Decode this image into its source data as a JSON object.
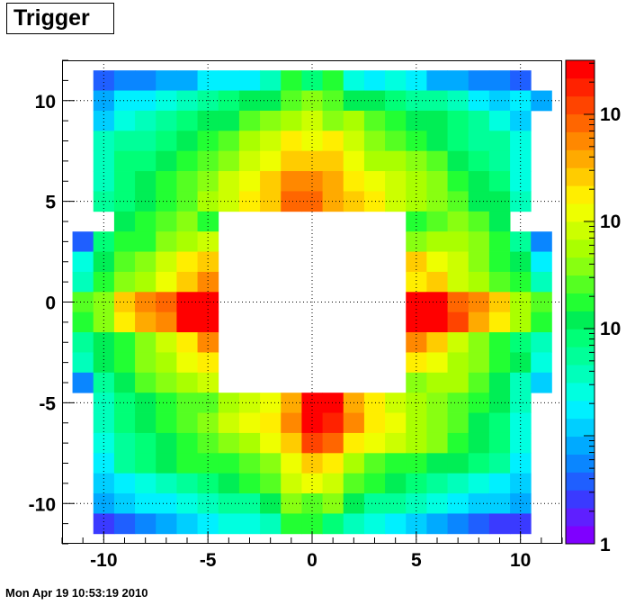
{
  "title": "Trigger",
  "timestamp": "Mon Apr 19 10:53:19 2010",
  "chart_data": {
    "type": "heatmap",
    "title": "Trigger",
    "x_edges": [
      -11.5,
      -10.5,
      -9.5,
      -8.5,
      -7.5,
      -6.5,
      -5.5,
      -4.5,
      -3.5,
      -2.5,
      -1.5,
      -0.5,
      0.5,
      1.5,
      2.5,
      3.5,
      4.5,
      5.5,
      6.5,
      7.5,
      8.5,
      9.5,
      10.5,
      11.5
    ],
    "y_edges": [
      -11.5,
      -10.5,
      -9.5,
      -8.5,
      -7.5,
      -6.5,
      -5.5,
      -4.5,
      -3.5,
      -2.5,
      -1.5,
      -0.5,
      0.5,
      1.5,
      2.5,
      3.5,
      4.5,
      5.5,
      6.5,
      7.5,
      8.5,
      9.5,
      10.5,
      11.5
    ],
    "xlim": [
      -12,
      12
    ],
    "ylim": [
      -12,
      12
    ],
    "x_ticks": [
      "-10",
      "-5",
      "0",
      "5",
      "10"
    ],
    "y_ticks": [
      "10",
      "5",
      "0",
      "-5",
      "-10"
    ],
    "z_scale": "log",
    "z_labels": [
      "1",
      "10",
      "10",
      "10",
      "10"
    ],
    "grid": true,
    "palette": [
      "#7f00ff",
      "#5f1fff",
      "#3a3aff",
      "#1f5fff",
      "#0a86ff",
      "#00aaff",
      "#00cfff",
      "#00f0ff",
      "#00ffe0",
      "#00ffbb",
      "#00ff99",
      "#00ff77",
      "#00ee55",
      "#22ff33",
      "#55ff22",
      "#88ff11",
      "#aaff00",
      "#ccff00",
      "#eeff00",
      "#ffee00",
      "#ffcc00",
      "#ffaa00",
      "#ff8800",
      "#ff6600",
      "#ff4400",
      "#ff2200",
      "#ff0000"
    ],
    "rows_top_to_bottom": [
      [
        -1,
        3,
        4,
        4,
        5,
        5,
        7,
        7,
        7,
        9,
        13,
        11,
        13,
        8,
        7,
        8,
        7,
        5,
        5,
        4,
        4,
        3,
        -1
      ],
      [
        -1,
        5,
        7,
        7,
        8,
        9,
        10,
        11,
        12,
        12,
        14,
        15,
        14,
        12,
        12,
        11,
        10,
        10,
        9,
        7,
        6,
        7,
        5
      ],
      [
        -1,
        6,
        8,
        9,
        10,
        11,
        12,
        12,
        14,
        15,
        16,
        17,
        15,
        16,
        14,
        13,
        12,
        12,
        11,
        10,
        8,
        6,
        -1
      ],
      [
        -1,
        9,
        10,
        10,
        11,
        12,
        13,
        14,
        16,
        17,
        19,
        18,
        19,
        17,
        15,
        14,
        13,
        12,
        11,
        10,
        10,
        8,
        -1
      ],
      [
        -1,
        9,
        11,
        11,
        12,
        13,
        14,
        15,
        17,
        18,
        20,
        20,
        20,
        18,
        16,
        16,
        15,
        14,
        12,
        11,
        10,
        8,
        -1
      ],
      [
        -1,
        9,
        11,
        12,
        13,
        14,
        15,
        17,
        18,
        20,
        22,
        22,
        21,
        19,
        18,
        17,
        16,
        15,
        13,
        12,
        11,
        8,
        -1
      ],
      [
        -1,
        10,
        11,
        12,
        13,
        14,
        16,
        17,
        19,
        20,
        23,
        23,
        21,
        20,
        19,
        17,
        16,
        15,
        14,
        12,
        12,
        9,
        -1
      ],
      [
        -1,
        -1,
        12,
        13,
        14,
        15,
        13,
        -1,
        -1,
        -1,
        -1,
        -1,
        -1,
        -1,
        -1,
        -1,
        13,
        14,
        15,
        14,
        12,
        -1,
        -1
      ],
      [
        3,
        11,
        13,
        13,
        15,
        16,
        17,
        -1,
        -1,
        -1,
        -1,
        -1,
        -1,
        -1,
        -1,
        -1,
        15,
        16,
        16,
        15,
        13,
        10,
        4
      ],
      [
        8,
        12,
        14,
        15,
        17,
        19,
        20,
        -1,
        -1,
        -1,
        -1,
        -1,
        -1,
        -1,
        -1,
        -1,
        20,
        18,
        17,
        15,
        13,
        12,
        7
      ],
      [
        9,
        13,
        15,
        16,
        18,
        20,
        22,
        -1,
        -1,
        -1,
        -1,
        -1,
        -1,
        -1,
        -1,
        -1,
        19,
        20,
        17,
        16,
        14,
        13,
        9
      ],
      [
        14,
        15,
        20,
        22,
        23,
        26,
        26,
        -1,
        -1,
        -1,
        -1,
        -1,
        -1,
        -1,
        -1,
        -1,
        26,
        26,
        23,
        22,
        20,
        16,
        14
      ],
      [
        13,
        15,
        19,
        21,
        22,
        26,
        26,
        -1,
        -1,
        -1,
        -1,
        -1,
        -1,
        -1,
        -1,
        -1,
        26,
        26,
        24,
        21,
        19,
        16,
        13
      ],
      [
        10,
        12,
        13,
        15,
        17,
        19,
        22,
        -1,
        -1,
        -1,
        -1,
        -1,
        -1,
        -1,
        -1,
        -1,
        22,
        20,
        17,
        15,
        13,
        11,
        9
      ],
      [
        9,
        12,
        13,
        15,
        16,
        18,
        19,
        -1,
        -1,
        -1,
        -1,
        -1,
        -1,
        -1,
        -1,
        -1,
        19,
        18,
        16,
        15,
        13,
        12,
        8
      ],
      [
        4,
        10,
        12,
        14,
        15,
        16,
        17,
        -1,
        -1,
        -1,
        -1,
        -1,
        -1,
        -1,
        -1,
        -1,
        15,
        16,
        16,
        14,
        12,
        9,
        6
      ],
      [
        -1,
        9,
        11,
        12,
        13,
        14,
        14,
        16,
        17,
        18,
        21,
        26,
        26,
        21,
        19,
        17,
        16,
        15,
        14,
        13,
        12,
        9,
        -1
      ],
      [
        -1,
        9,
        11,
        12,
        13,
        14,
        15,
        17,
        18,
        19,
        22,
        26,
        25,
        22,
        19,
        18,
        16,
        15,
        14,
        12,
        11,
        8,
        -1
      ],
      [
        -1,
        8,
        10,
        11,
        12,
        13,
        14,
        15,
        16,
        18,
        20,
        24,
        23,
        19,
        18,
        17,
        16,
        15,
        13,
        12,
        11,
        8,
        -1
      ],
      [
        -1,
        7,
        10,
        11,
        12,
        13,
        13,
        13,
        14,
        15,
        18,
        20,
        19,
        16,
        14,
        13,
        13,
        12,
        12,
        11,
        10,
        7,
        -1
      ],
      [
        -1,
        6,
        7,
        8,
        9,
        10,
        11,
        12,
        13,
        14,
        17,
        18,
        17,
        14,
        13,
        12,
        11,
        10,
        9,
        8,
        7,
        6,
        -1
      ],
      [
        -1,
        5,
        6,
        7,
        7,
        8,
        9,
        10,
        10,
        12,
        15,
        14,
        15,
        12,
        10,
        10,
        9,
        8,
        7,
        6,
        6,
        5,
        -1
      ],
      [
        -1,
        2,
        3,
        4,
        5,
        6,
        7,
        8,
        8,
        9,
        13,
        13,
        11,
        9,
        8,
        7,
        6,
        5,
        4,
        3,
        2,
        2,
        -1
      ]
    ]
  }
}
